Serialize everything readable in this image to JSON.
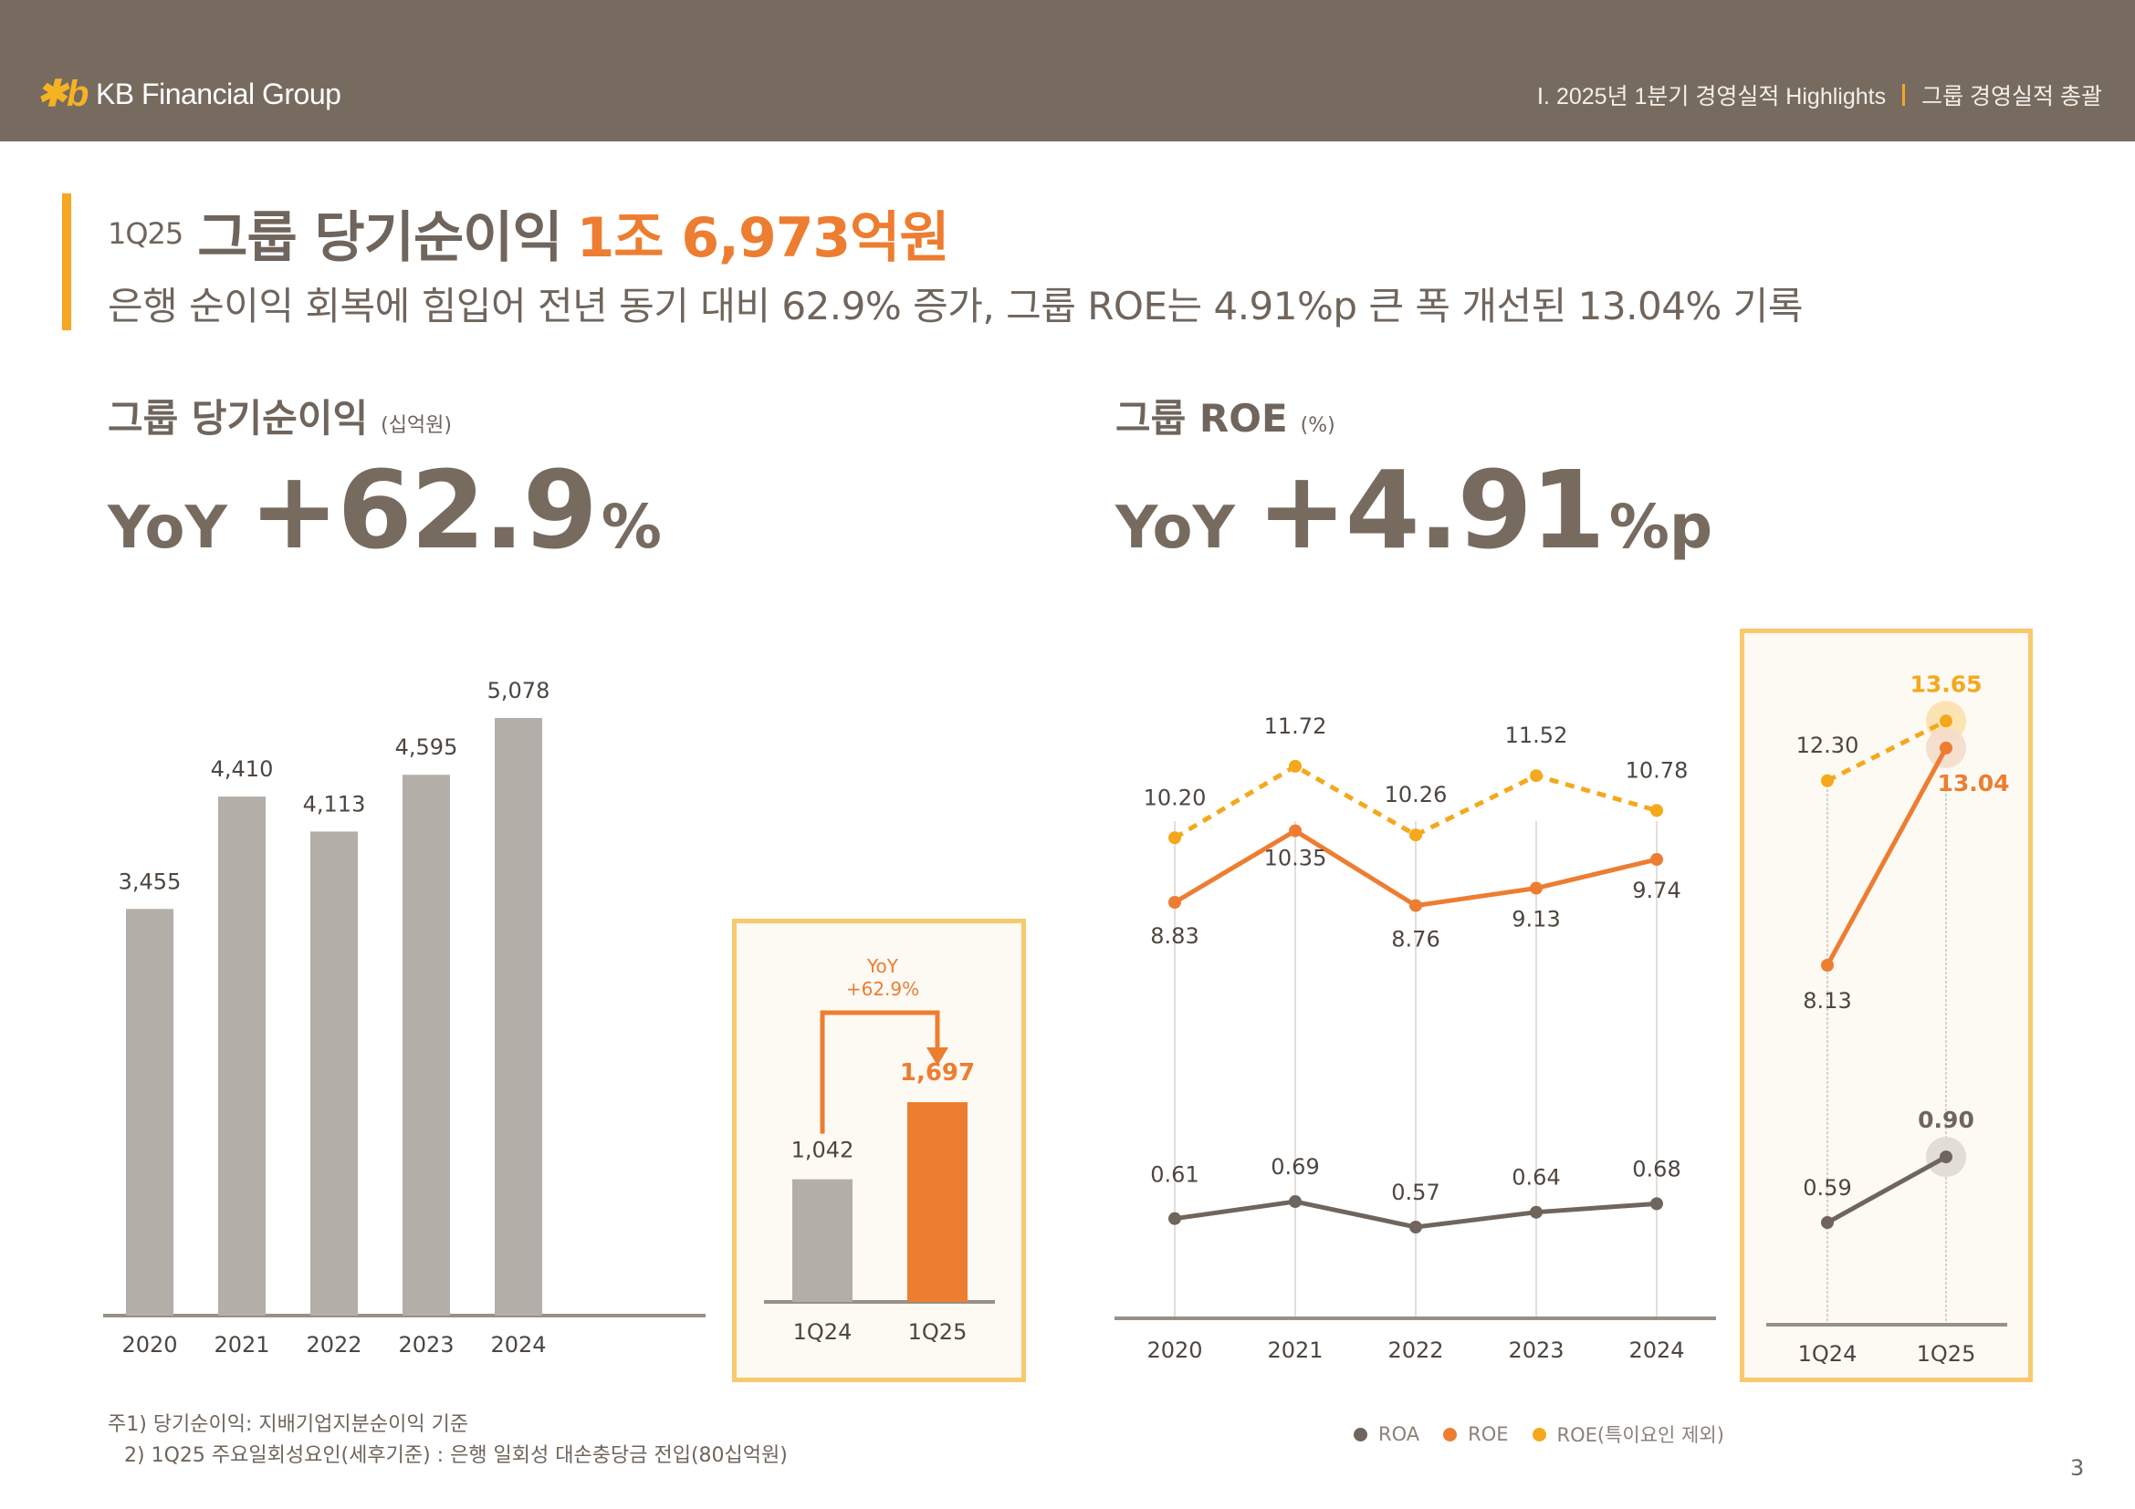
{
  "header": {
    "brand": "KB Financial Group",
    "logo_icon": "kb-star-logo-icon",
    "breadcrumb": [
      "Ⅰ. 2025년 1분기 경영실적 Highlights",
      "그룹 경영실적 총괄"
    ]
  },
  "title": {
    "period": "1Q25",
    "main": "그룹 당기순이익",
    "highlight": "1조 6,973억원",
    "subtitle": "은행 순이익 회복에 힘입어 전년 동기 대비 62.9% 증가, 그룹 ROE는 4.91%p 큰 폭 개선된 13.04% 기록"
  },
  "net_income": {
    "title": "그룹 당기순이익",
    "unit": "(십억원)",
    "yoy_label": "YoY",
    "yoy_value": "+62.9",
    "yoy_suffix": "%",
    "box_annotation": [
      "YoY",
      "+62.9%"
    ]
  },
  "roe": {
    "title": "그룹 ROE",
    "unit": "(%)",
    "yoy_label": "YoY",
    "yoy_value": "+4.91",
    "yoy_suffix": "%p"
  },
  "colors": {
    "header": "#776b60",
    "accent": "#f5a623",
    "orange": "#ed7d31",
    "yellow": "#f5a81c",
    "gray_bar": "#b3aea8",
    "roa": "#6f655c",
    "box_border": "#f8c96d"
  },
  "chart_data": [
    {
      "type": "bar",
      "title": "그룹 당기순이익 (십억원)",
      "categories": [
        "2020",
        "2021",
        "2022",
        "2023",
        "2024"
      ],
      "values": [
        3455,
        4410,
        4113,
        4595,
        5078
      ],
      "labels": [
        "3,455",
        "4,410",
        "4,113",
        "4,595",
        "5,078"
      ],
      "xlabel": "",
      "ylabel": "",
      "ylim": [
        0,
        5500
      ],
      "grid": false
    },
    {
      "type": "bar",
      "title": "그룹 당기순이익 분기 비교 (십억원)",
      "categories": [
        "1Q24",
        "1Q25"
      ],
      "values": [
        1042,
        1697
      ],
      "labels": [
        "1,042",
        "1,697"
      ],
      "annotation": "YoY +62.9%",
      "ylim": [
        0,
        5500
      ]
    },
    {
      "type": "line",
      "title": "그룹 ROE (%)",
      "categories": [
        "2020",
        "2021",
        "2022",
        "2023",
        "2024"
      ],
      "series": [
        {
          "name": "ROA",
          "values": [
            0.61,
            0.69,
            0.57,
            0.64,
            0.68
          ],
          "labels": [
            "0.61",
            "0.69",
            "0.57",
            "0.64",
            "0.68"
          ]
        },
        {
          "name": "ROE",
          "values": [
            8.83,
            10.35,
            8.76,
            9.13,
            9.74
          ],
          "labels": [
            "8.83",
            "10.35",
            "8.76",
            "9.13",
            "9.74"
          ]
        },
        {
          "name": "ROE(특이요인 제외)",
          "values": [
            10.2,
            11.72,
            10.26,
            11.52,
            10.78
          ],
          "labels": [
            "10.20",
            "11.72",
            "10.26",
            "11.52",
            "10.78"
          ]
        }
      ],
      "legend": "bottom"
    },
    {
      "type": "line",
      "title": "그룹 ROE 분기 비교 (%)",
      "categories": [
        "1Q24",
        "1Q25"
      ],
      "series": [
        {
          "name": "ROA",
          "values": [
            0.59,
            0.9
          ],
          "labels": [
            "0.59",
            "0.90"
          ]
        },
        {
          "name": "ROE",
          "values": [
            8.13,
            13.04
          ],
          "labels": [
            "8.13",
            "13.04"
          ]
        },
        {
          "name": "ROE(특이요인 제외)",
          "values": [
            12.3,
            13.65
          ],
          "labels": [
            "12.30",
            "13.65"
          ]
        }
      ]
    }
  ],
  "legend": [
    "ROA",
    "ROE",
    "ROE(특이요인 제외)"
  ],
  "footnotes": [
    "주1) 당기순이익: 지배기업지분순이익 기준",
    "2) 1Q25 주요일회성요인(세후기준) : 은행 일회성 대손충당금 전입(80십억원)"
  ],
  "page_number": "3"
}
